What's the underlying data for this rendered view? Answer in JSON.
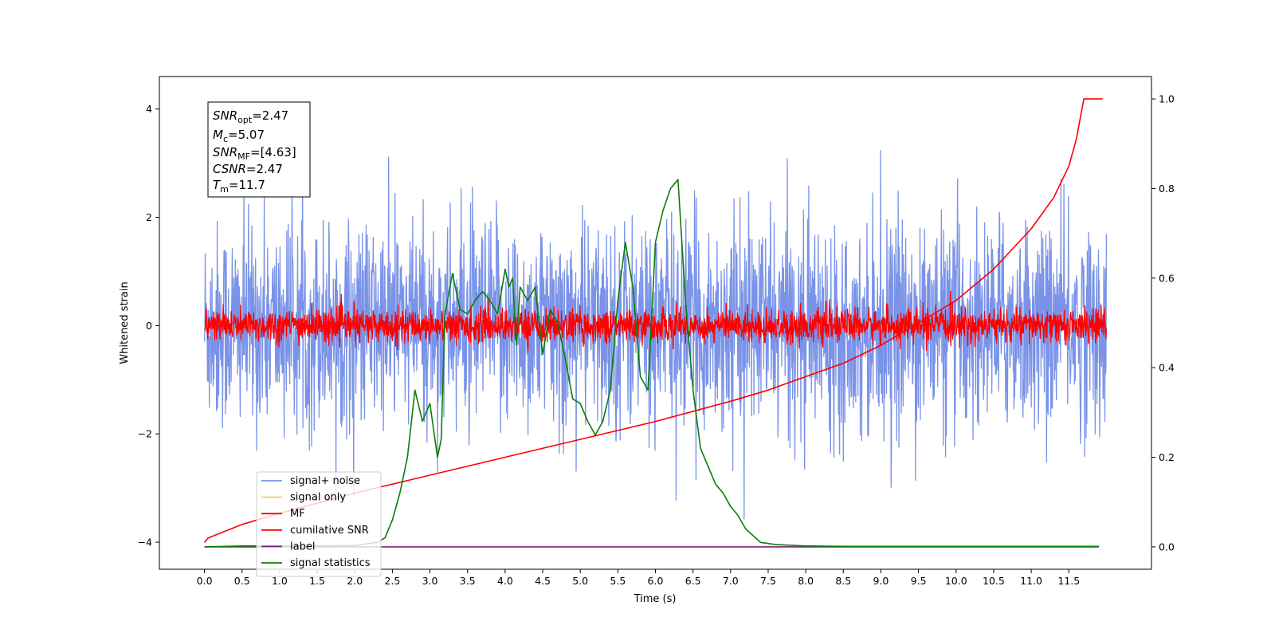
{
  "chart_data": {
    "type": "line",
    "title": "",
    "xlabel": "Time (s)",
    "ylabel": "Whitened strain",
    "y2label": "",
    "xlim": [
      -0.6,
      12.6
    ],
    "ylim": [
      -4.5,
      4.6
    ],
    "y2lim": [
      -0.05,
      1.05
    ],
    "x_ticks": [
      "0.0",
      "0.5",
      "1.0",
      "1.5",
      "2.0",
      "2.5",
      "3.0",
      "3.5",
      "4.0",
      "4.5",
      "5.0",
      "5.5",
      "6.0",
      "6.5",
      "7.0",
      "7.5",
      "8.0",
      "8.5",
      "9.0",
      "9.5",
      "10.0",
      "10.5",
      "11.0",
      "11.5"
    ],
    "y_ticks": [
      "−4",
      "−2",
      "0",
      "2",
      "4"
    ],
    "y2_ticks": [
      "0.0",
      "0.2",
      "0.4",
      "0.6",
      "0.8",
      "1.0"
    ],
    "grid": false,
    "legend_position": "lower-left",
    "annotation": {
      "lines": [
        {
          "main": "SNR",
          "sub": "opt",
          "value": "=2.47"
        },
        {
          "main": "M",
          "sub": "c",
          "value": "=5.07"
        },
        {
          "main": "SNR",
          "sub": "MF",
          "value": "=[4.63]"
        },
        {
          "main": "CSNR",
          "sub": "",
          "value": "=2.47"
        },
        {
          "main": "T",
          "sub": "m",
          "value": "=11.7"
        }
      ]
    },
    "series": [
      {
        "name": "signal+ noise",
        "color": "#7a93e8",
        "axis": "left",
        "kind": "noise",
        "std": 0.95,
        "x_range": [
          0.0,
          12.0
        ]
      },
      {
        "name": "signal only",
        "color": "#f5c86e",
        "axis": "left",
        "kind": "hidden"
      },
      {
        "name": "MF",
        "color": "#ff0000",
        "axis": "left",
        "kind": "noise",
        "std": 0.15,
        "x_range": [
          0.0,
          12.0
        ]
      },
      {
        "name": "cumilative SNR",
        "color": "#ff0000",
        "axis": "right",
        "x": [
          0.0,
          0.05,
          0.5,
          1.0,
          2.0,
          3.0,
          4.0,
          5.0,
          6.0,
          7.0,
          7.5,
          8.0,
          8.5,
          9.0,
          9.5,
          10.0,
          10.5,
          11.0,
          11.3,
          11.5,
          11.6,
          11.7,
          11.95
        ],
        "values": [
          0.01,
          0.02,
          0.05,
          0.075,
          0.12,
          0.16,
          0.2,
          0.24,
          0.28,
          0.325,
          0.35,
          0.38,
          0.41,
          0.45,
          0.5,
          0.55,
          0.62,
          0.71,
          0.78,
          0.85,
          0.91,
          1.0,
          1.0
        ]
      },
      {
        "name": "label",
        "color": "#7b1f7e",
        "axis": "right",
        "x": [
          0.0,
          11.9
        ],
        "values": [
          0.0,
          0.0
        ]
      },
      {
        "name": "signal statistics",
        "color": "#0a7d0a",
        "axis": "right",
        "x": [
          0.0,
          0.5,
          1.0,
          1.5,
          2.0,
          2.3,
          2.4,
          2.5,
          2.6,
          2.7,
          2.8,
          2.9,
          3.0,
          3.1,
          3.15,
          3.2,
          3.3,
          3.4,
          3.5,
          3.6,
          3.7,
          3.8,
          3.9,
          4.0,
          4.05,
          4.1,
          4.15,
          4.2,
          4.3,
          4.4,
          4.5,
          4.6,
          4.7,
          4.8,
          4.9,
          5.0,
          5.1,
          5.2,
          5.3,
          5.4,
          5.5,
          5.6,
          5.7,
          5.8,
          5.9,
          6.0,
          6.1,
          6.2,
          6.3,
          6.4,
          6.5,
          6.6,
          6.7,
          6.8,
          6.9,
          7.0,
          7.1,
          7.2,
          7.4,
          7.6,
          8.0,
          8.5,
          9.0,
          11.9
        ],
        "values": [
          0.0,
          0.002,
          0.002,
          0.002,
          0.003,
          0.01,
          0.02,
          0.06,
          0.12,
          0.2,
          0.35,
          0.28,
          0.32,
          0.2,
          0.24,
          0.52,
          0.61,
          0.53,
          0.52,
          0.55,
          0.57,
          0.55,
          0.52,
          0.62,
          0.58,
          0.6,
          0.45,
          0.58,
          0.55,
          0.58,
          0.43,
          0.53,
          0.5,
          0.42,
          0.33,
          0.32,
          0.28,
          0.25,
          0.28,
          0.35,
          0.55,
          0.68,
          0.58,
          0.38,
          0.35,
          0.68,
          0.75,
          0.8,
          0.82,
          0.55,
          0.35,
          0.22,
          0.18,
          0.14,
          0.12,
          0.09,
          0.07,
          0.04,
          0.01,
          0.005,
          0.002,
          0.001,
          0.001,
          0.001
        ]
      }
    ]
  }
}
